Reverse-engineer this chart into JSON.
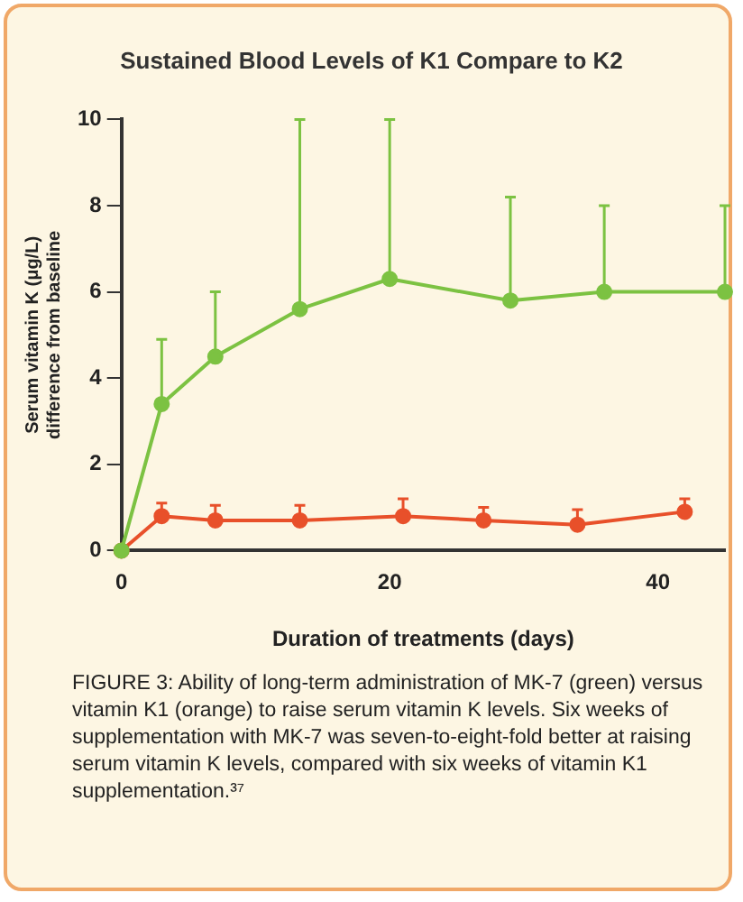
{
  "chart_data": {
    "type": "line",
    "title": "Sustained Blood Levels of K1 Compare to K2",
    "xlabel": "Duration of treatments (days)",
    "ylabel": "Serum vitamin K (μg/L)\ndifference from baseline",
    "xlim": [
      0,
      45
    ],
    "xticks": [
      0,
      20,
      40
    ],
    "ylim": [
      0,
      10
    ],
    "yticks": [
      0,
      2,
      4,
      6,
      8,
      10
    ],
    "grid": false,
    "legend": false,
    "marker": "circle",
    "line_style": "solid",
    "series": [
      {
        "color": "#7cc242",
        "x": [
          0,
          3,
          7,
          13.3,
          20,
          29,
          36,
          45
        ],
        "values": [
          0,
          3.4,
          4.5,
          5.6,
          6.3,
          5.8,
          6,
          6
        ],
        "errors": [
          null,
          [
            3.4,
            4.9
          ],
          [
            4.5,
            6
          ],
          [
            5.6,
            10
          ],
          [
            6.3,
            10
          ],
          [
            5.8,
            8.2
          ],
          [
            6,
            8
          ],
          [
            6,
            8
          ]
        ]
      },
      {
        "color": "#e8502a",
        "x": [
          0,
          3,
          7,
          13.3,
          21,
          27,
          34,
          42
        ],
        "values": [
          0,
          0.8,
          0.7,
          0.7,
          0.8,
          0.7,
          0.6,
          0.9
        ],
        "errors": [
          null,
          [
            0.8,
            1.1
          ],
          [
            0.7,
            1.05
          ],
          [
            0.7,
            1.05
          ],
          [
            0.8,
            1.2
          ],
          [
            0.7,
            1
          ],
          [
            0.6,
            0.95
          ],
          [
            0.9,
            1.2
          ]
        ]
      }
    ],
    "annotations": [
      "FIGURE 3: Ability of long-term administration of MK-7 (green) versus vitamin K1 (orange) to raise serum vitamin K levels. Six weeks of supplementation with MK-7 was seven-to-eight-fold better at raising serum vitamin K levels, compared with six weeks of vitamin K1 supplementation.³⁷"
    ]
  }
}
